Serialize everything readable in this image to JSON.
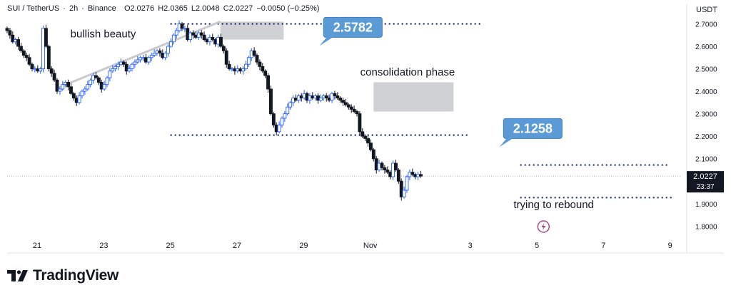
{
  "header": {
    "symbol": "SUI / TetherUS",
    "interval": "2h",
    "exchange": "Binance",
    "open": "O2.0276",
    "high": "H2.0365",
    "low": "L2.0048",
    "close": "C2.0227",
    "change": "−0.0050 (−0.25%)"
  },
  "currency": "USDT",
  "price_tag": {
    "price": "2.0227",
    "countdown": "23:37"
  },
  "brand": "TradingView",
  "chart_data": {
    "type": "candlestick",
    "title": "SUI / TetherUS · 2h · Binance",
    "ylim": [
      1.76,
      2.73
    ],
    "y_ticks": [
      "2.7000",
      "2.6000",
      "2.5000",
      "2.4000",
      "2.3000",
      "2.2000",
      "2.1000",
      "2.0000",
      "1.9000",
      "1.8000"
    ],
    "x_ticks": [
      "21",
      "23",
      "25",
      "27",
      "29",
      "Nov",
      "3",
      "5",
      "7",
      "9"
    ],
    "x_tick_days": [
      21,
      23,
      25,
      27,
      29,
      31,
      34,
      36,
      38,
      40
    ],
    "x_day_range": [
      20.1,
      40.35
    ],
    "current_price": 2.0227,
    "annotations": [
      {
        "text": "bullish beauty",
        "day": 22.0,
        "price": 2.64
      },
      {
        "text": "consolidation phase",
        "day": 30.7,
        "price": 2.47
      },
      {
        "text": "trying to rebound",
        "day": 35.3,
        "price": 1.88
      }
    ],
    "callouts": [
      {
        "label": "2.5782",
        "day": 29.6,
        "price": 2.64
      },
      {
        "label": "2.1258",
        "day": 35.0,
        "price": 2.19
      }
    ],
    "levels": [
      {
        "price": 2.7,
        "from_day": 25.0,
        "to_day": 34.3
      },
      {
        "price": 2.205,
        "from_day": 25.0,
        "to_day": 34.0
      },
      {
        "price": 2.072,
        "from_day": 35.5,
        "to_day": 40.0
      },
      {
        "price": 1.927,
        "from_day": 35.5,
        "to_day": 40.1
      }
    ],
    "zones": [
      {
        "day_from": 26.5,
        "day_to": 28.4,
        "price_from": 2.63,
        "price_to": 2.71
      },
      {
        "day_from": 31.1,
        "day_to": 33.5,
        "price_from": 2.31,
        "price_to": 2.44
      }
    ],
    "trend_line": {
      "from": {
        "day": 21.7,
        "price": 2.42
      },
      "to": {
        "day": 26.5,
        "price": 2.71
      }
    },
    "candles": {
      "start_day": 20.1,
      "step_hours": 2,
      "closes": [
        2.67,
        2.65,
        2.62,
        2.63,
        2.6,
        2.58,
        2.56,
        2.55,
        2.52,
        2.5,
        2.5,
        2.49,
        2.5,
        2.68,
        2.6,
        2.5,
        2.48,
        2.45,
        2.4,
        2.41,
        2.43,
        2.44,
        2.42,
        2.39,
        2.37,
        2.35,
        2.38,
        2.4,
        2.41,
        2.43,
        2.45,
        2.47,
        2.46,
        2.44,
        2.41,
        2.43,
        2.46,
        2.49,
        2.5,
        2.51,
        2.52,
        2.53,
        2.52,
        2.49,
        2.5,
        2.52,
        2.53,
        2.54,
        2.55,
        2.55,
        2.53,
        2.55,
        2.56,
        2.57,
        2.58,
        2.57,
        2.55,
        2.57,
        2.6,
        2.62,
        2.65,
        2.67,
        2.7,
        2.68,
        2.68,
        2.63,
        2.66,
        2.65,
        2.64,
        2.66,
        2.65,
        2.63,
        2.62,
        2.64,
        2.63,
        2.61,
        2.64,
        2.6,
        2.58,
        2.52,
        2.5,
        2.5,
        2.49,
        2.5,
        2.49,
        2.5,
        2.52,
        2.55,
        2.58,
        2.56,
        2.53,
        2.51,
        2.49,
        2.47,
        2.41,
        2.3,
        2.25,
        2.22,
        2.25,
        2.28,
        2.3,
        2.33,
        2.35,
        2.37,
        2.36,
        2.38,
        2.37,
        2.39,
        2.36,
        2.38,
        2.37,
        2.38,
        2.36,
        2.37,
        2.38,
        2.37,
        2.36,
        2.39,
        2.38,
        2.37,
        2.36,
        2.35,
        2.34,
        2.33,
        2.32,
        2.31,
        2.3,
        2.22,
        2.2,
        2.19,
        2.17,
        2.14,
        2.1,
        2.05,
        2.08,
        2.06,
        2.05,
        2.04,
        2.02,
        2.08,
        2.05,
        2.0,
        1.93,
        1.96,
        2.02,
        2.04,
        2.03,
        2.02,
        2.03,
        2.0227
      ]
    }
  }
}
